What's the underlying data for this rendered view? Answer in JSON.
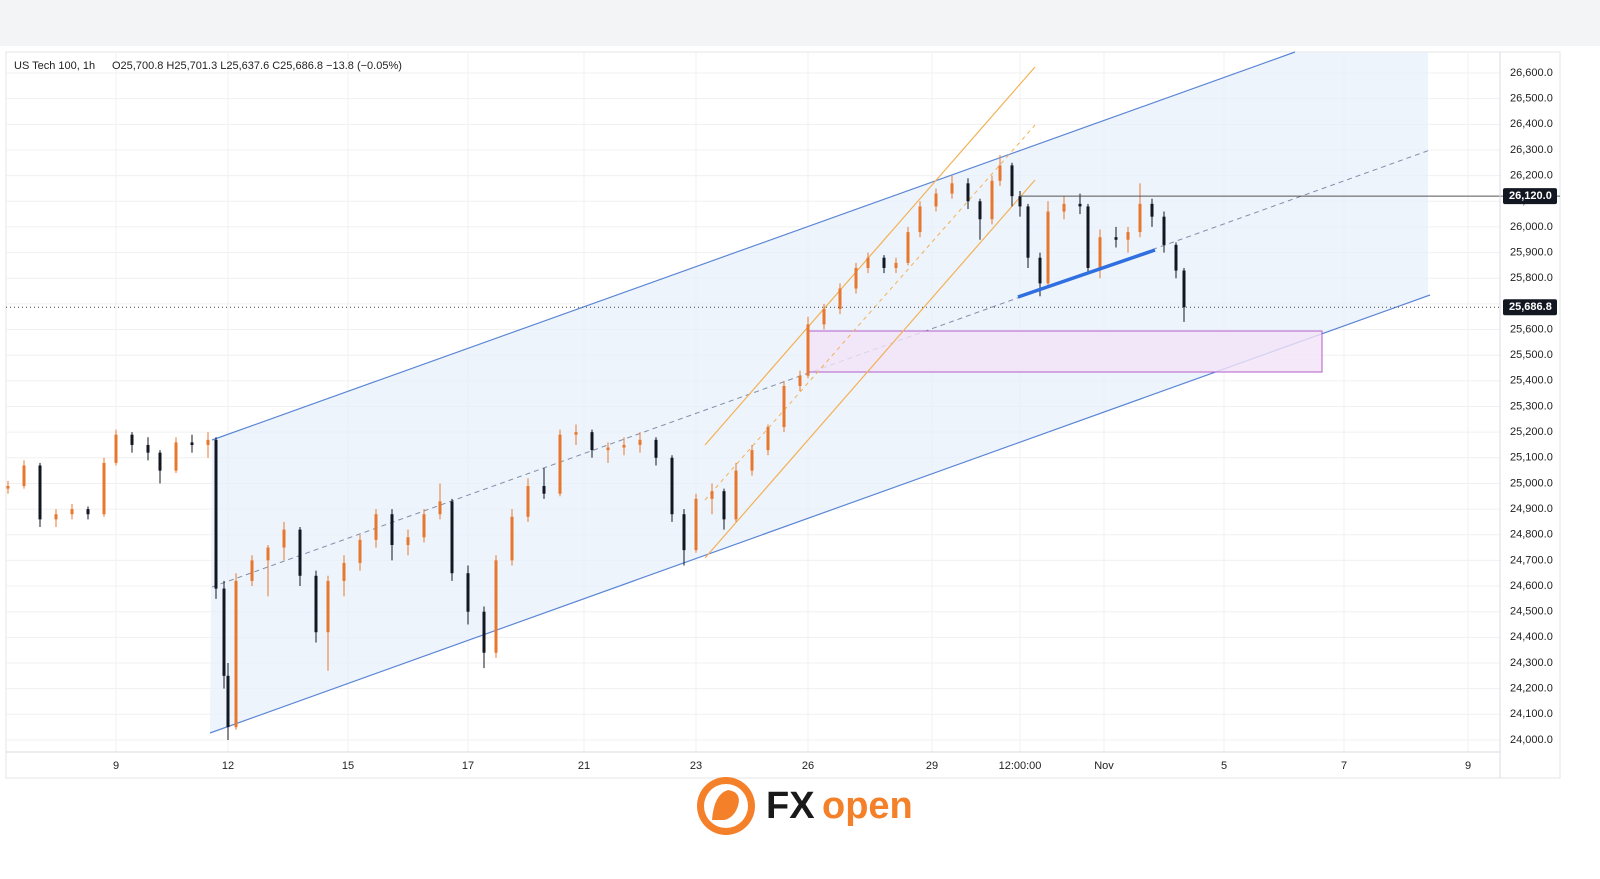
{
  "chart_data": {
    "type": "candlestick",
    "header": "US Tech 100, 1h",
    "ohlc": "O25,700.8 H25,701.3 L25,637.6 C25,686.8 −13.8 (−0.05%)",
    "up_color": "#e8772e",
    "down_color": "#131722",
    "grid": true,
    "xlim": [
      0,
      373
    ],
    "ylim": [
      23953,
      26682
    ],
    "xticks": [
      {
        "value": 27,
        "label": "9"
      },
      {
        "value": 55,
        "label": "12"
      },
      {
        "value": 85,
        "label": "15"
      },
      {
        "value": 115,
        "label": "17"
      },
      {
        "value": 144,
        "label": "21"
      },
      {
        "value": 172,
        "label": "23"
      },
      {
        "value": 200,
        "label": "26"
      },
      {
        "value": 231,
        "label": "29"
      },
      {
        "value": 253,
        "label": "12:00:00"
      },
      {
        "value": 274,
        "label": "Nov"
      },
      {
        "value": 304,
        "label": "5"
      },
      {
        "value": 334,
        "label": "7"
      },
      {
        "value": 365,
        "label": "9"
      }
    ],
    "yticks": [
      {
        "value": 24000,
        "label": "24,000.0"
      },
      {
        "value": 24100,
        "label": "24,100.0"
      },
      {
        "value": 24200,
        "label": "24,200.0"
      },
      {
        "value": 24300,
        "label": "24,300.0"
      },
      {
        "value": 24400,
        "label": "24,400.0"
      },
      {
        "value": 24500,
        "label": "24,500.0"
      },
      {
        "value": 24600,
        "label": "24,600.0"
      },
      {
        "value": 24700,
        "label": "24,700.0"
      },
      {
        "value": 24800,
        "label": "24,800.0"
      },
      {
        "value": 24900,
        "label": "24,900.0"
      },
      {
        "value": 25000,
        "label": "25,000.0"
      },
      {
        "value": 25100,
        "label": "25,100.0"
      },
      {
        "value": 25200,
        "label": "25,200.0"
      },
      {
        "value": 25300,
        "label": "25,300.0"
      },
      {
        "value": 25400,
        "label": "25,400.0"
      },
      {
        "value": 25500,
        "label": "25,500.0"
      },
      {
        "value": 25600,
        "label": "25,600.0"
      },
      {
        "value": 25700,
        "label": "25,700.0"
      },
      {
        "value": 25800,
        "label": "25,800.0"
      },
      {
        "value": 25900,
        "label": "25,900.0"
      },
      {
        "value": 26000,
        "label": "26,000.0"
      },
      {
        "value": 26100,
        "label": "26,100.0"
      },
      {
        "value": 26200,
        "label": "26,200.0"
      },
      {
        "value": 26300,
        "label": "26,300.0"
      },
      {
        "value": 26400,
        "label": "26,400.0"
      },
      {
        "value": 26500,
        "label": "26,500.0"
      },
      {
        "value": 26600,
        "label": "26,600.0"
      }
    ],
    "price_lines": [
      {
        "value": 26120,
        "label": "26,120.0",
        "style": "solid"
      },
      {
        "value": 25686.8,
        "label": "25,686.8",
        "style": "dotted"
      }
    ],
    "x": [
      0,
      4,
      8,
      12,
      16,
      20,
      24,
      27,
      31,
      35,
      38,
      42,
      46,
      50,
      52,
      54,
      55,
      57,
      61,
      65,
      69,
      73,
      77,
      80,
      84,
      88,
      92,
      96,
      100,
      104,
      108,
      111,
      115,
      119,
      122,
      126,
      130,
      134,
      138,
      142,
      146,
      150,
      154,
      158,
      162,
      166,
      169,
      172,
      176,
      179,
      182,
      186,
      190,
      194,
      198,
      200,
      204,
      208,
      212,
      215,
      219,
      222,
      225,
      228,
      232,
      236,
      240,
      243,
      246,
      248,
      251,
      253,
      255,
      258,
      260,
      264,
      268,
      270,
      273,
      277,
      280,
      283,
      286,
      289,
      292,
      294
    ],
    "open": [
      24980,
      24990,
      25070,
      24860,
      24880,
      24900,
      24880,
      25080,
      25190,
      25150,
      25120,
      25050,
      25160,
      25150,
      25170,
      24590,
      24250,
      24050,
      24620,
      24700,
      24750,
      24820,
      24640,
      24420,
      24620,
      24690,
      24780,
      24880,
      24760,
      24790,
      24880,
      24930,
      24650,
      24500,
      24340,
      24700,
      24870,
      24990,
      24960,
      25190,
      25200,
      25130,
      25140,
      25150,
      25170,
      25100,
      24880,
      24740,
      24940,
      24970,
      24860,
      25050,
      25130,
      25220,
      25380,
      25420,
      25620,
      25680,
      25760,
      25840,
      25880,
      25840,
      25860,
      25980,
      26080,
      26130,
      26170,
      26100,
      26030,
      26180,
      26240,
      26120,
      26080,
      25880,
      25780,
      26060,
      26090,
      26080,
      25840,
      25960,
      25950,
      25980,
      26090,
      26040,
      25930,
      25830
    ],
    "high": [
      25010,
      25090,
      25080,
      24900,
      24920,
      24910,
      25100,
      25210,
      25200,
      25180,
      25130,
      25180,
      25190,
      25200,
      25180,
      24620,
      24300,
      24650,
      24720,
      24760,
      24850,
      24830,
      24660,
      24640,
      24720,
      24800,
      24900,
      24900,
      24820,
      24900,
      25000,
      24940,
      24680,
      24520,
      24720,
      24900,
      25020,
      25060,
      25210,
      25230,
      25210,
      25160,
      25180,
      25200,
      25180,
      25110,
      24900,
      24960,
      25000,
      24980,
      25080,
      25150,
      25230,
      25400,
      25440,
      25650,
      25700,
      25780,
      25860,
      25900,
      25890,
      25880,
      26000,
      26100,
      26150,
      26200,
      26190,
      26110,
      26200,
      26280,
      26250,
      26140,
      26090,
      25900,
      26100,
      26120,
      26130,
      26090,
      25990,
      26000,
      26000,
      26170,
      26110,
      26060,
      25940,
      25840
    ],
    "low": [
      24960,
      24980,
      24830,
      24830,
      24860,
      24860,
      24870,
      25070,
      25120,
      25090,
      25000,
      25040,
      25120,
      25100,
      24550,
      24200,
      24000,
      24040,
      24600,
      24560,
      24700,
      24600,
      24380,
      24270,
      24560,
      24660,
      24750,
      24700,
      24720,
      24770,
      24860,
      24620,
      24450,
      24280,
      24320,
      24680,
      24850,
      24940,
      24950,
      25150,
      25100,
      25080,
      25110,
      25120,
      25070,
      24850,
      24680,
      24730,
      24880,
      24820,
      24850,
      25030,
      25110,
      25200,
      25360,
      25410,
      25600,
      25660,
      25740,
      25820,
      25820,
      25820,
      25850,
      25960,
      26060,
      26110,
      26070,
      25950,
      26010,
      26160,
      26080,
      26040,
      25840,
      25730,
      25760,
      26030,
      26050,
      25820,
      25800,
      25920,
      25900,
      25960,
      26000,
      25900,
      25800,
      25630
    ],
    "close": [
      24990,
      25070,
      24860,
      24880,
      24900,
      24880,
      25080,
      25190,
      25150,
      25120,
      25050,
      25160,
      25150,
      25170,
      24590,
      24250,
      24050,
      24620,
      24700,
      24750,
      24820,
      24640,
      24420,
      24620,
      24690,
      24780,
      24880,
      24760,
      24790,
      24880,
      24930,
      24650,
      24500,
      24340,
      24700,
      24870,
      24990,
      24960,
      25190,
      25200,
      25130,
      25140,
      25150,
      25170,
      25100,
      24880,
      24740,
      24940,
      24970,
      24860,
      25050,
      25130,
      25220,
      25380,
      25420,
      25620,
      25680,
      25760,
      25840,
      25880,
      25840,
      25860,
      25980,
      26080,
      26130,
      26170,
      26100,
      26030,
      26180,
      26240,
      26120,
      26080,
      25880,
      25780,
      26060,
      26090,
      26080,
      25840,
      25960,
      25950,
      25980,
      26090,
      26040,
      25930,
      25830,
      25687
    ]
  },
  "logo": {
    "fx": "FX",
    "open": "open"
  }
}
